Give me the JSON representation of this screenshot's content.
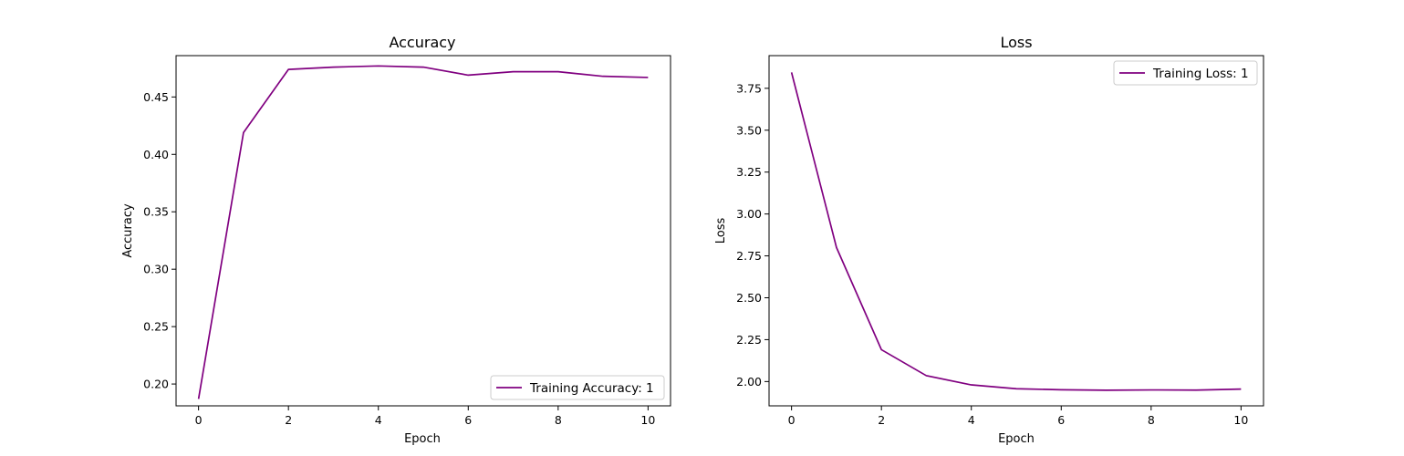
{
  "chart_data": [
    {
      "type": "line",
      "title": "Accuracy",
      "xlabel": "Epoch",
      "ylabel": "Accuracy",
      "x": [
        0,
        1,
        2,
        3,
        4,
        5,
        6,
        7,
        8,
        9,
        10
      ],
      "xlim": [
        -0.5,
        10.5
      ],
      "ylim": [
        0.181,
        0.486
      ],
      "xticks": [
        0,
        2,
        4,
        6,
        8,
        10
      ],
      "yticks": [
        0.2,
        0.25,
        0.3,
        0.35,
        0.4,
        0.45
      ],
      "ytick_labels": [
        "0.20",
        "0.25",
        "0.30",
        "0.35",
        "0.40",
        "0.45"
      ],
      "grid": false,
      "legend_position": "lower-right",
      "series": [
        {
          "name": "Training Accuracy: 1",
          "color": "#800080",
          "values": [
            0.187,
            0.419,
            0.474,
            0.476,
            0.477,
            0.476,
            0.469,
            0.472,
            0.472,
            0.468,
            0.467
          ]
        }
      ]
    },
    {
      "type": "line",
      "title": "Loss",
      "xlabel": "Epoch",
      "ylabel": "Loss",
      "x": [
        0,
        1,
        2,
        3,
        4,
        5,
        6,
        7,
        8,
        9,
        10
      ],
      "xlim": [
        -0.5,
        10.5
      ],
      "ylim": [
        1.855,
        3.945
      ],
      "xticks": [
        0,
        2,
        4,
        6,
        8,
        10
      ],
      "yticks": [
        2.0,
        2.25,
        2.5,
        2.75,
        3.0,
        3.25,
        3.5,
        3.75
      ],
      "ytick_labels": [
        "2.00",
        "2.25",
        "2.50",
        "2.75",
        "3.00",
        "3.25",
        "3.50",
        "3.75"
      ],
      "grid": false,
      "legend_position": "upper-right",
      "series": [
        {
          "name": "Training Loss: 1",
          "color": "#800080",
          "values": [
            3.845,
            2.8,
            2.19,
            2.035,
            1.98,
            1.957,
            1.951,
            1.948,
            1.95,
            1.949,
            1.955
          ]
        }
      ]
    }
  ]
}
